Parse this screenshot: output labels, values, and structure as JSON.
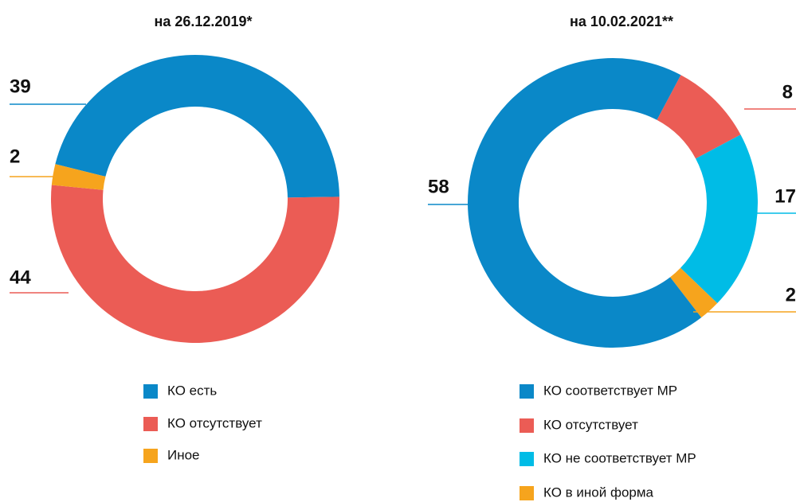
{
  "chart_data": [
    {
      "type": "pie",
      "title": "на 26.12.2019*",
      "categories": [
        "КО есть",
        "КО отсутствует",
        "Иное"
      ],
      "values": [
        39,
        44,
        2
      ],
      "colors": [
        "#0a88c8",
        "#eb5c55",
        "#f6a41d"
      ]
    },
    {
      "type": "pie",
      "title": "на 10.02.2021**",
      "categories": [
        "КО соответствует МР",
        "КО отсутствует",
        "КО не соответствует МР",
        "КО в иной форма"
      ],
      "values": [
        58,
        8,
        17,
        2
      ],
      "colors": [
        "#0a88c8",
        "#eb5c55",
        "#00bce6",
        "#f6a41d"
      ]
    }
  ]
}
